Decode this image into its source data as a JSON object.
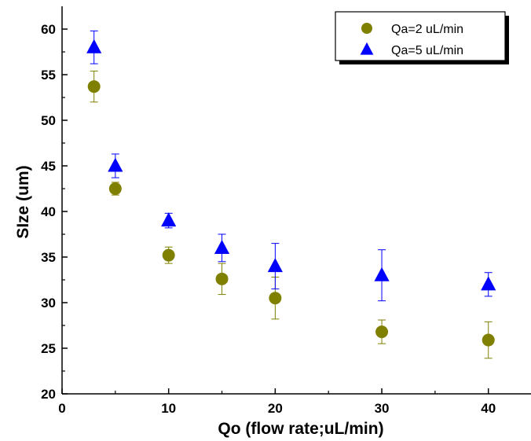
{
  "chart_data": {
    "type": "scatter",
    "title": "",
    "xlabel": "Qo (flow rate;uL/min)",
    "ylabel": "SIze (um)",
    "xlim": [
      0,
      44
    ],
    "ylim": [
      20,
      62.5
    ],
    "xticks": [
      0,
      10,
      20,
      30,
      40
    ],
    "yticks": [
      20,
      25,
      30,
      35,
      40,
      45,
      50,
      55,
      60
    ],
    "legend_position": "top-right",
    "grid": false,
    "series": [
      {
        "name": "Qa=2 uL/min",
        "marker": "circle",
        "color": "#808000",
        "errorbar_color": "#808000",
        "x": [
          3,
          5,
          10,
          15,
          20,
          30,
          40
        ],
        "y": [
          53.7,
          42.5,
          35.2,
          32.6,
          30.5,
          26.8,
          25.9
        ],
        "err": [
          1.7,
          0.7,
          0.9,
          1.7,
          2.3,
          1.3,
          2.0
        ]
      },
      {
        "name": "Qa=5 uL/min",
        "marker": "triangle",
        "color": "#0000ff",
        "errorbar_color": "#0000ff",
        "x": [
          3,
          5,
          10,
          15,
          20,
          30,
          40
        ],
        "y": [
          58.0,
          45.0,
          39.0,
          36.0,
          34.0,
          33.0,
          32.0
        ],
        "err": [
          1.8,
          1.3,
          0.8,
          1.5,
          2.5,
          2.8,
          1.3
        ]
      }
    ]
  }
}
